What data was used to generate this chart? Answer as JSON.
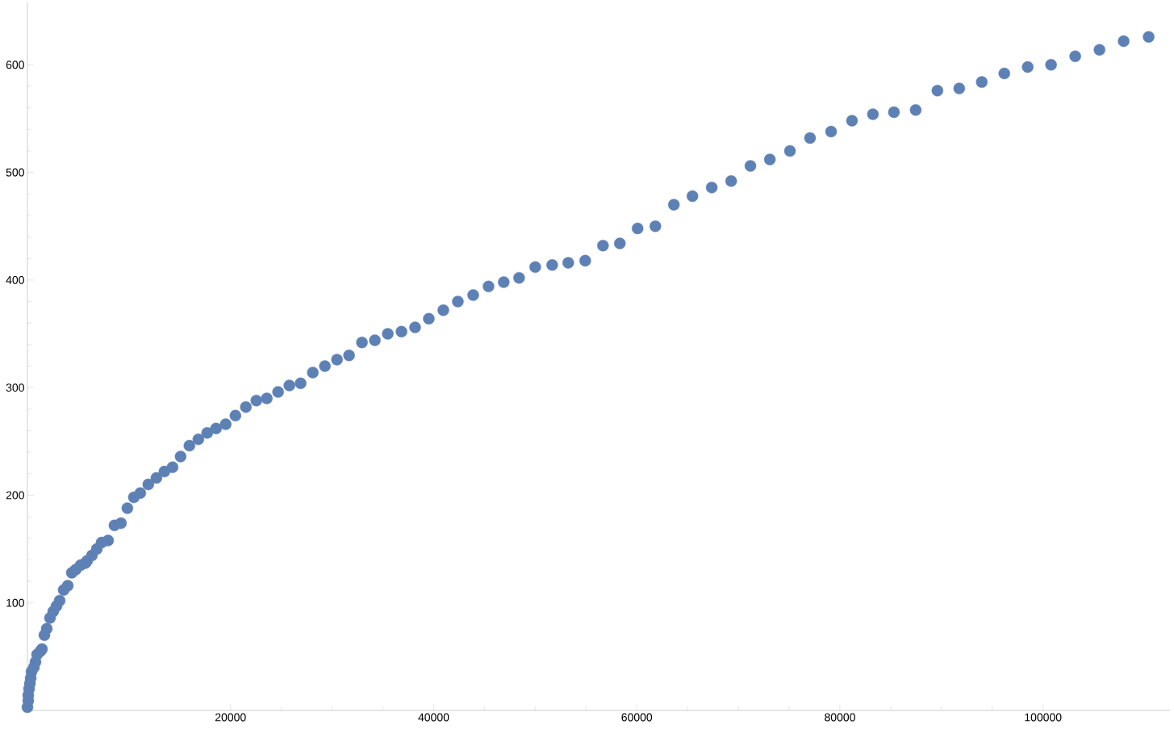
{
  "chart_data": {
    "type": "scatter",
    "marker": "circle",
    "color": "#5e81b5",
    "x": [
      0,
      80,
      80,
      160,
      240,
      320,
      400,
      630,
      790,
      950,
      1270,
      1430,
      1670,
      1900,
      2220,
      2540,
      2860,
      3170,
      3570,
      3970,
      4370,
      4760,
      5240,
      5710,
      5870,
      6350,
      6830,
      7300,
      7940,
      8570,
      9210,
      9840,
      10480,
      11110,
      11900,
      12700,
      13490,
      14290,
      15080,
      15950,
      16830,
      17700,
      18570,
      19520,
      20480,
      21510,
      22540,
      23570,
      24680,
      25790,
      26900,
      28100,
      29290,
      30480,
      31670,
      32940,
      34210,
      35480,
      36830,
      38170,
      39520,
      40950,
      42380,
      43890,
      45400,
      46900,
      48410,
      50000,
      51670,
      53250,
      54920,
      56670,
      58330,
      60080,
      61830,
      63650,
      65480,
      67380,
      69290,
      71190,
      73100,
      75080,
      77060,
      79130,
      81190,
      83250,
      85320,
      87460,
      89600,
      91750,
      93970,
      96190,
      98490,
      100790,
      103170,
      105560,
      107940,
      110400
    ],
    "values": [
      3,
      9,
      14,
      20,
      25,
      30,
      36,
      40,
      45,
      52,
      55,
      57,
      70,
      76,
      86,
      92,
      97,
      102,
      112,
      116,
      128,
      131,
      135,
      137,
      139,
      144,
      150,
      156,
      158,
      172,
      174,
      188,
      198,
      202,
      210,
      216,
      222,
      226,
      236,
      246,
      252,
      258,
      262,
      266,
      274,
      282,
      288,
      290,
      296,
      302,
      304,
      314,
      320,
      326,
      330,
      342,
      344,
      350,
      352,
      356,
      364,
      372,
      380,
      386,
      394,
      398,
      402,
      412,
      414,
      416,
      418,
      432,
      434,
      448,
      450,
      470,
      478,
      486,
      492,
      506,
      512,
      520,
      532,
      538,
      548,
      554,
      556,
      558,
      576,
      578,
      584,
      592,
      598,
      600,
      608,
      614,
      622,
      626
    ],
    "xlim": [
      0,
      112500
    ],
    "ylim": [
      0,
      658
    ],
    "xticks": [
      20000,
      40000,
      60000,
      80000,
      100000
    ],
    "yticks": [
      100,
      200,
      300,
      400,
      500,
      600
    ],
    "grid": false
  }
}
